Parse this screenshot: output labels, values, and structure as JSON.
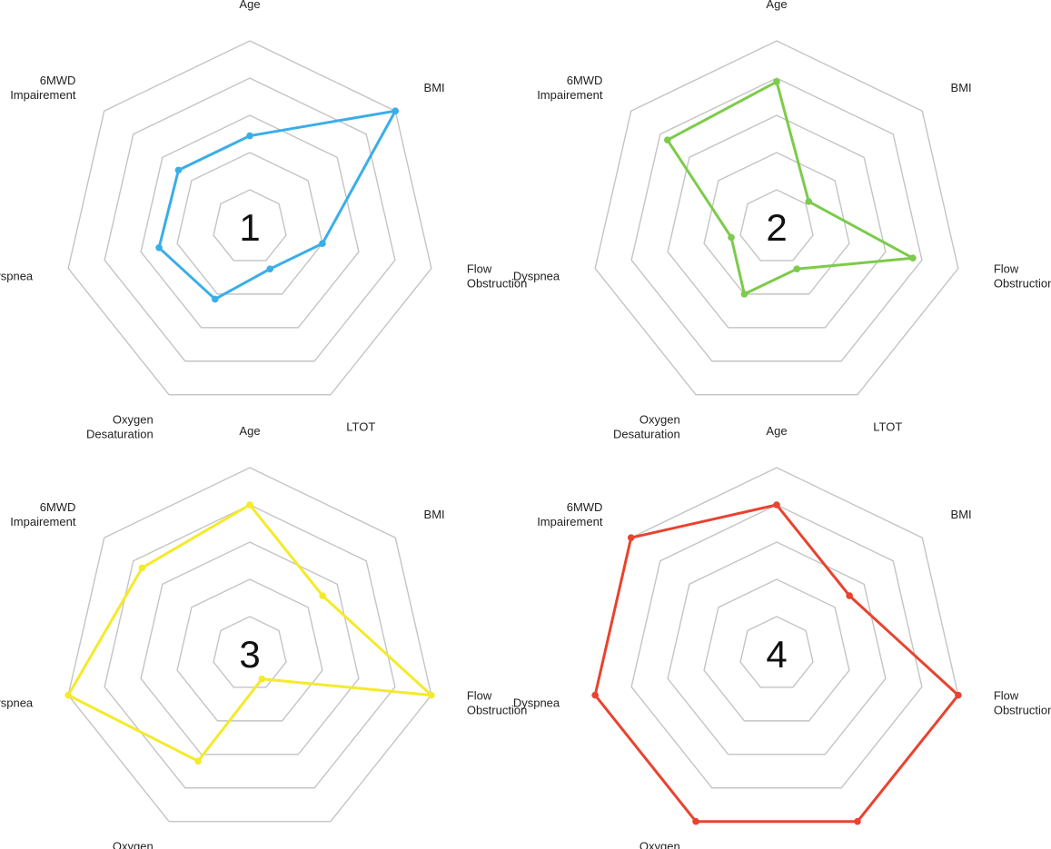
{
  "chart_data": [
    {
      "type": "radar",
      "axes": [
        "Age",
        "BMI",
        "Flow Obstruction",
        "LTOT",
        "Oxygen Desaturation",
        "Dyspnea",
        "6MWD Impairement"
      ],
      "series": [
        {
          "values": [
            2.45,
            5.0,
            2.0,
            1.25,
            2.15,
            2.5,
            2.45
          ]
        }
      ],
      "label": "1",
      "color": "#3aaee8",
      "rlim": [
        0,
        5
      ],
      "rings": 5,
      "grid": true
    },
    {
      "type": "radar",
      "axes": [
        "Age",
        "BMI",
        "Flow Obstruction",
        "LTOT",
        "Oxygen Desaturation",
        "Dyspnea",
        "6MWD Impairement"
      ],
      "series": [
        {
          "values": [
            3.9,
            1.1,
            3.75,
            1.25,
            2.0,
            1.25,
            3.75
          ]
        }
      ],
      "label": "2",
      "color": "#7ccb4a",
      "rlim": [
        0,
        5
      ],
      "rings": 5,
      "grid": true
    },
    {
      "type": "radar",
      "axes": [
        "Age",
        "BMI",
        "Flow Obstruction",
        "LTOT",
        "Oxygen Desaturation",
        "Dyspnea",
        "6MWD Impairement"
      ],
      "series": [
        {
          "values": [
            4.0,
            2.5,
            5.0,
            0.75,
            3.2,
            5.0,
            3.7
          ]
        }
      ],
      "label": "3",
      "color": "#f5ea2a",
      "rlim": [
        0,
        5
      ],
      "rings": 5,
      "grid": true
    },
    {
      "type": "radar",
      "axes": [
        "Age",
        "BMI",
        "Flow Obstruction",
        "LTOT",
        "Oxygen Desaturation",
        "Dyspnea",
        "6MWD Impairement"
      ],
      "series": [
        {
          "values": [
            4.0,
            2.5,
            5.0,
            5.0,
            5.0,
            5.0,
            5.0
          ]
        }
      ],
      "label": "4",
      "color": "#e8432f",
      "rlim": [
        0,
        5
      ],
      "rings": 5,
      "grid": true
    }
  ]
}
